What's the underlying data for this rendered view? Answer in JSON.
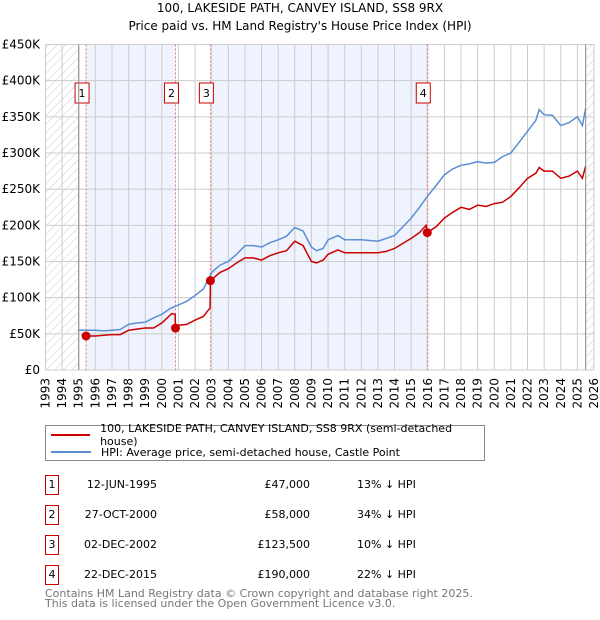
{
  "title_line1": "100, LAKESIDE PATH, CANVEY ISLAND, SS8 9RX",
  "title_line2": "Price paid vs. HM Land Registry's House Price Index (HPI)",
  "colors": {
    "property": "#cc0000",
    "hpi": "#5b8fd4",
    "shade": "#eef3fd",
    "grid": "#cccccc"
  },
  "chart_data": {
    "type": "line",
    "title": "Price paid vs. HM Land Registry's House Price Index (HPI)",
    "xlim": [
      1993,
      2026
    ],
    "ylim": [
      0,
      450000
    ],
    "grid": true,
    "legend_placement": "below",
    "x_ticks": [
      "1993",
      "1994",
      "1995",
      "1996",
      "1997",
      "1998",
      "1999",
      "2000",
      "2001",
      "2002",
      "2003",
      "2004",
      "2005",
      "2006",
      "2007",
      "2008",
      "2009",
      "2010",
      "2011",
      "2012",
      "2013",
      "2014",
      "2015",
      "2016",
      "2017",
      "2018",
      "2019",
      "2020",
      "2021",
      "2022",
      "2023",
      "2024",
      "2025",
      "2026"
    ],
    "y_ticks": [
      {
        "v": 0,
        "label": "£0"
      },
      {
        "v": 50000,
        "label": "£50K"
      },
      {
        "v": 100000,
        "label": "£100K"
      },
      {
        "v": 150000,
        "label": "£150K"
      },
      {
        "v": 200000,
        "label": "£200K"
      },
      {
        "v": 250000,
        "label": "£250K"
      },
      {
        "v": 300000,
        "label": "£300K"
      },
      {
        "v": 350000,
        "label": "£350K"
      },
      {
        "v": 400000,
        "label": "£400K"
      },
      {
        "v": 450000,
        "label": "£450K"
      }
    ],
    "data_range": [
      1995.0,
      2025.5
    ],
    "series": [
      {
        "name": "100, LAKESIDE PATH, CANVEY ISLAND, SS8 9RX (semi-detached house)",
        "color": "#cc0000",
        "x": [
          1995.44,
          1996,
          1996.5,
          1997,
          1997.5,
          1998,
          1999,
          1999.5,
          2000,
          2000.6,
          2000.8,
          2000.82,
          2001,
          2001.5,
          2002,
          2002.5,
          2002.9,
          2002.92,
          2003.5,
          2004,
          2004.5,
          2005,
          2005.5,
          2006,
          2006.5,
          2007,
          2007.5,
          2008,
          2008.5,
          2009,
          2009.3,
          2009.7,
          2010,
          2010.6,
          2011,
          2012,
          2013,
          2013.5,
          2014,
          2014.5,
          2015,
          2015.5,
          2015.9,
          2015.97,
          2016.5,
          2017,
          2017.5,
          2018,
          2018.5,
          2019,
          2019.5,
          2020,
          2020.5,
          2021,
          2021.5,
          2022,
          2022.5,
          2022.7,
          2023,
          2023.5,
          2024,
          2024.5,
          2025,
          2025.3,
          2025.5
        ],
        "y": [
          47000,
          47000,
          48000,
          49000,
          49000,
          55000,
          58000,
          58000,
          65000,
          78000,
          77000,
          58000,
          62000,
          63000,
          69000,
          74000,
          86000,
          123500,
          135000,
          140000,
          148000,
          155000,
          155000,
          152000,
          158000,
          162000,
          165000,
          178000,
          172000,
          150000,
          148000,
          152000,
          160000,
          166000,
          162000,
          162000,
          162000,
          164000,
          168000,
          175000,
          182000,
          190000,
          200000,
          190000,
          198000,
          210000,
          218000,
          225000,
          222000,
          228000,
          226000,
          230000,
          232000,
          240000,
          252000,
          265000,
          272000,
          280000,
          275000,
          275000,
          265000,
          268000,
          275000,
          265000,
          282000
        ]
      },
      {
        "name": "HPI: Average price, semi-detached house, Castle Point",
        "color": "#5b8fd4",
        "x": [
          1995,
          1995.5,
          1996,
          1996.5,
          1997,
          1997.5,
          1998,
          1998.5,
          1999,
          1999.5,
          2000,
          2000.5,
          2001,
          2001.5,
          2002,
          2002.5,
          2003,
          2003.5,
          2004,
          2004.5,
          2005,
          2005.5,
          2006,
          2006.5,
          2007,
          2007.5,
          2008,
          2008.5,
          2009,
          2009.3,
          2009.7,
          2010,
          2010.6,
          2011,
          2012,
          2013,
          2013.5,
          2014,
          2014.5,
          2015,
          2015.5,
          2015.97,
          2016.5,
          2017,
          2017.5,
          2018,
          2018.5,
          2019,
          2019.5,
          2020,
          2020.5,
          2021,
          2021.5,
          2022,
          2022.5,
          2022.7,
          2023,
          2023.5,
          2024,
          2024.5,
          2025,
          2025.3,
          2025.5
        ],
        "y": [
          55000,
          55000,
          55000,
          54000,
          55000,
          56000,
          63000,
          65000,
          66000,
          72000,
          77000,
          85000,
          90000,
          95000,
          103000,
          112000,
          135000,
          145000,
          150000,
          160000,
          172000,
          172000,
          170000,
          176000,
          180000,
          185000,
          197000,
          192000,
          170000,
          165000,
          168000,
          180000,
          186000,
          180000,
          180000,
          178000,
          182000,
          186000,
          198000,
          210000,
          225000,
          240000,
          255000,
          270000,
          278000,
          283000,
          285000,
          288000,
          286000,
          287000,
          295000,
          300000,
          315000,
          330000,
          345000,
          360000,
          353000,
          352000,
          338000,
          342000,
          350000,
          338000,
          362000
        ]
      }
    ],
    "annotations": [
      {
        "label": "1",
        "x": 1995.44,
        "y": 47000
      },
      {
        "label": "2",
        "x": 2000.82,
        "y": 58000
      },
      {
        "label": "3",
        "x": 2002.92,
        "y": 123500
      },
      {
        "label": "4",
        "x": 2015.97,
        "y": 190000
      }
    ]
  },
  "legend": {
    "property_label": "100, LAKESIDE PATH, CANVEY ISLAND, SS8 9RX (semi-detached house)",
    "hpi_label": "HPI: Average price, semi-detached house, Castle Point"
  },
  "sales": [
    {
      "num": "1",
      "date": "12-JUN-1995",
      "price": "£47,000",
      "hpi": "13% ↓ HPI"
    },
    {
      "num": "2",
      "date": "27-OCT-2000",
      "price": "£58,000",
      "hpi": "34% ↓ HPI"
    },
    {
      "num": "3",
      "date": "02-DEC-2002",
      "price": "£123,500",
      "hpi": "10% ↓ HPI"
    },
    {
      "num": "4",
      "date": "22-DEC-2015",
      "price": "£190,000",
      "hpi": "22% ↓ HPI"
    }
  ],
  "footer": {
    "line1": "Contains HM Land Registry data © Crown copyright and database right 2025.",
    "line2": "This data is licensed under the Open Government Licence v3.0."
  }
}
